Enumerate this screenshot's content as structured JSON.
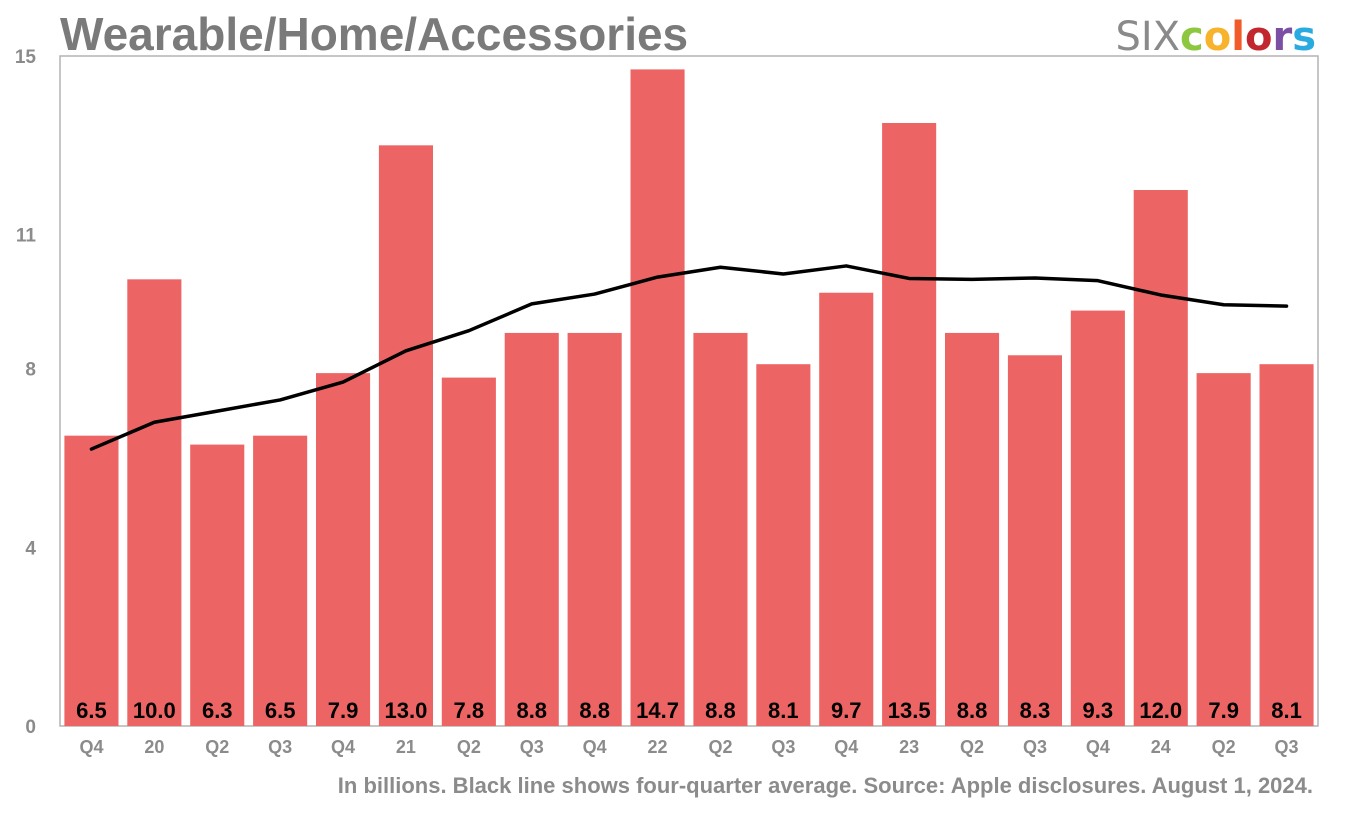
{
  "header": {
    "title": "Wearable/Home/Accessories",
    "brand_prefix": "SIX",
    "brand_letters": [
      "c",
      "o",
      "l",
      "o",
      "r",
      "s"
    ],
    "brand_colors": [
      "#8dc63f",
      "#f7b32b",
      "#f15a29",
      "#c1272d",
      "#7b4fa3",
      "#29abe2"
    ]
  },
  "footnote": "In billions. Black line shows four-quarter average. Source: Apple disclosures. August 1, 2024.",
  "chart_data": {
    "type": "bar",
    "title": "Wearable/Home/Accessories",
    "xlabel": "",
    "ylabel": "",
    "categories": [
      "Q4",
      "20",
      "Q2",
      "Q3",
      "Q4",
      "21",
      "Q2",
      "Q3",
      "Q4",
      "22",
      "Q2",
      "Q3",
      "Q4",
      "23",
      "Q2",
      "Q3",
      "Q4",
      "24",
      "Q2",
      "Q3"
    ],
    "ylim": [
      0,
      15
    ],
    "yticks": [
      {
        "value": 0,
        "label": "0"
      },
      {
        "value": 4,
        "label": "4"
      },
      {
        "value": 8,
        "label": "8"
      },
      {
        "value": 11,
        "label": "11"
      },
      {
        "value": 15,
        "label": "15"
      }
    ],
    "series": [
      {
        "type": "bar",
        "values": [
          6.5,
          10.0,
          6.3,
          6.5,
          7.9,
          13.0,
          7.8,
          8.8,
          8.8,
          14.7,
          8.8,
          8.1,
          9.7,
          13.5,
          8.8,
          8.3,
          9.3,
          12.0,
          7.9,
          8.1
        ],
        "labels": [
          "6.5",
          "10.0",
          "6.3",
          "6.5",
          "7.9",
          "13.0",
          "7.8",
          "8.8",
          "8.8",
          "14.7",
          "8.8",
          "8.1",
          "9.7",
          "13.5",
          "8.8",
          "8.3",
          "9.3",
          "12.0",
          "7.9",
          "8.1"
        ]
      },
      {
        "type": "line",
        "values": [
          6.2,
          6.8,
          7.05,
          7.3,
          7.7,
          8.4,
          8.85,
          9.45,
          9.67,
          10.05,
          10.27,
          10.12,
          10.3,
          10.02,
          10.0,
          10.03,
          9.97,
          9.65,
          9.43,
          9.4
        ]
      }
    ],
    "colors": {
      "bar": "#ec6464",
      "line": "#000000",
      "axis_frame": "#b3b3b3"
    },
    "grid": false,
    "legend": "none"
  }
}
